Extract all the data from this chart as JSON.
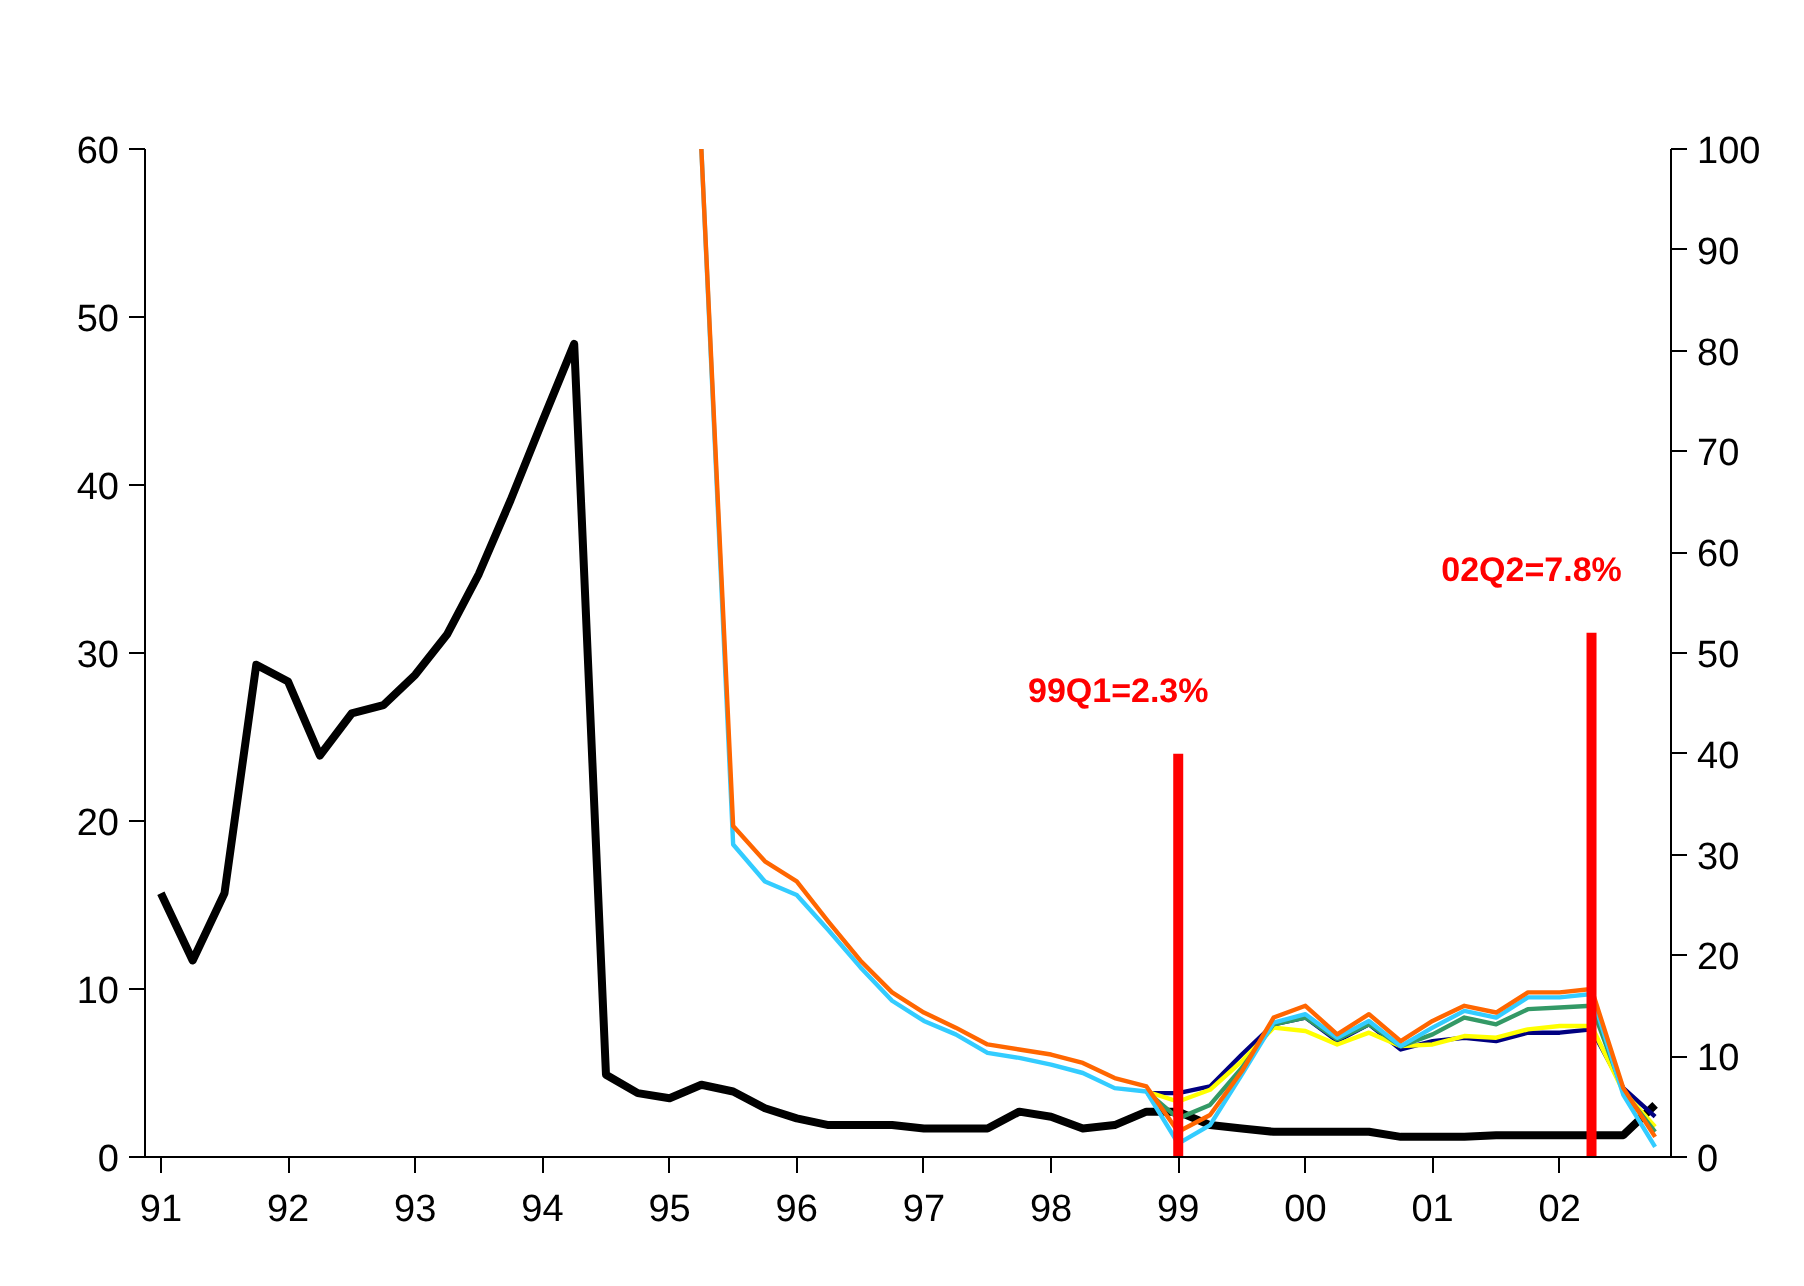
{
  "chart_data": {
    "type": "line",
    "x": [
      1991.0,
      1991.25,
      1991.5,
      1991.75,
      1992.0,
      1992.25,
      1992.5,
      1992.75,
      1993.0,
      1993.25,
      1993.5,
      1993.75,
      1994.0,
      1994.25,
      1994.5,
      1994.75,
      1995.0,
      1995.25,
      1995.5,
      1995.75,
      1996.0,
      1996.25,
      1996.5,
      1996.75,
      1997.0,
      1997.25,
      1997.5,
      1997.75,
      1998.0,
      1998.25,
      1998.5,
      1998.75,
      1999.0,
      1999.25,
      1999.5,
      1999.75,
      2000.0,
      2000.25,
      2000.5,
      2000.75,
      2001.0,
      2001.25,
      2001.5,
      2001.75,
      2002.0,
      2002.25,
      2002.5,
      2002.75
    ],
    "series": [
      {
        "color": "#000000",
        "values": [
          15.7,
          11.7,
          15.7,
          29.3,
          28.3,
          23.9,
          26.4,
          26.9,
          28.7,
          31.1,
          34.7,
          39.1,
          43.8,
          48.4,
          4.9,
          3.8,
          3.5,
          4.3,
          3.9,
          2.9,
          2.3,
          1.9,
          1.9,
          1.9,
          1.7,
          1.7,
          1.7,
          2.7,
          2.4,
          1.7,
          1.9,
          2.7,
          2.7,
          1.9,
          1.7,
          1.5,
          1.5,
          1.5,
          1.5,
          1.2,
          1.2,
          1.2,
          1.3,
          1.3,
          1.3,
          1.3,
          1.3,
          3.1
        ]
      },
      {
        "color": "#000080",
        "values": [
          null,
          null,
          null,
          null,
          null,
          null,
          null,
          null,
          null,
          null,
          null,
          null,
          null,
          null,
          null,
          null,
          null,
          null,
          null,
          null,
          null,
          null,
          null,
          null,
          null,
          null,
          null,
          null,
          null,
          null,
          null,
          3.8,
          3.8,
          4.2,
          6.1,
          7.9,
          8.3,
          6.9,
          7.9,
          6.4,
          6.9,
          7.1,
          6.9,
          7.4,
          7.4,
          7.6,
          4.1,
          2.4
        ]
      },
      {
        "color": "#ffff00",
        "values": [
          null,
          null,
          null,
          null,
          null,
          null,
          null,
          null,
          null,
          null,
          null,
          null,
          null,
          null,
          null,
          null,
          null,
          null,
          null,
          null,
          null,
          null,
          null,
          null,
          null,
          null,
          null,
          null,
          null,
          null,
          null,
          3.9,
          3.3,
          4.0,
          5.7,
          7.7,
          7.5,
          6.7,
          7.4,
          6.6,
          6.7,
          7.2,
          7.1,
          7.6,
          7.8,
          7.8,
          3.9,
          1.8
        ]
      },
      {
        "color": "#339966",
        "values": [
          null,
          null,
          null,
          null,
          null,
          null,
          null,
          null,
          null,
          null,
          null,
          null,
          null,
          null,
          null,
          null,
          null,
          null,
          null,
          null,
          null,
          null,
          null,
          null,
          null,
          null,
          null,
          null,
          null,
          null,
          null,
          3.9,
          2.3,
          3.1,
          5.3,
          7.9,
          8.3,
          7.0,
          7.9,
          6.6,
          7.3,
          8.3,
          7.9,
          8.8,
          8.9,
          9.0,
          3.9,
          1.5
        ]
      },
      {
        "color": "#33ccff",
        "values": [
          null,
          null,
          null,
          null,
          null,
          null,
          null,
          null,
          null,
          null,
          null,
          null,
          null,
          null,
          null,
          null,
          null,
          60,
          18.6,
          16.4,
          15.6,
          13.5,
          11.3,
          9.3,
          8.1,
          7.3,
          6.2,
          5.9,
          5.5,
          5.0,
          4.1,
          3.9,
          0.8,
          1.9,
          4.9,
          8.0,
          8.5,
          7.1,
          8.1,
          6.6,
          7.7,
          8.7,
          8.3,
          9.5,
          9.5,
          9.7,
          3.7,
          0.6
        ]
      },
      {
        "color": "#ff6600",
        "values": [
          null,
          null,
          null,
          null,
          null,
          null,
          null,
          null,
          null,
          null,
          null,
          null,
          null,
          null,
          null,
          null,
          null,
          60,
          19.7,
          17.6,
          16.4,
          14.0,
          11.7,
          9.8,
          8.6,
          7.7,
          6.7,
          6.4,
          6.1,
          5.6,
          4.7,
          4.2,
          1.5,
          2.5,
          5.1,
          8.3,
          9.0,
          7.3,
          8.5,
          6.9,
          8.1,
          9.0,
          8.6,
          9.8,
          9.8,
          10.0,
          4.1,
          1.2
        ]
      }
    ],
    "xlim": [
      1990.875,
      2002.875
    ],
    "xticks": [
      {
        "value": 1991,
        "label": "91"
      },
      {
        "value": 1992,
        "label": "92"
      },
      {
        "value": 1993,
        "label": "93"
      },
      {
        "value": 1994,
        "label": "94"
      },
      {
        "value": 1995,
        "label": "95"
      },
      {
        "value": 1996,
        "label": "96"
      },
      {
        "value": 1997,
        "label": "97"
      },
      {
        "value": 1998,
        "label": "98"
      },
      {
        "value": 1999,
        "label": "99"
      },
      {
        "value": 2000,
        "label": "00"
      },
      {
        "value": 2001,
        "label": "01"
      },
      {
        "value": 2002,
        "label": "02"
      }
    ],
    "ylim": [
      0,
      60
    ],
    "yticks": [
      0,
      10,
      20,
      30,
      40,
      50,
      60
    ],
    "y2lim": [
      0,
      100
    ],
    "y2ticks": [
      0,
      10,
      20,
      30,
      40,
      50,
      60,
      70,
      80,
      90,
      100
    ],
    "ref_lines": [
      {
        "axis": "x",
        "value": 1999.0,
        "color": "#ff0000"
      },
      {
        "axis": "x",
        "value": 2002.25,
        "color": "#ff0000"
      }
    ],
    "annotations": [
      "99Q1=2.3%",
      "02Q2=7.8%"
    ],
    "grid": false
  }
}
